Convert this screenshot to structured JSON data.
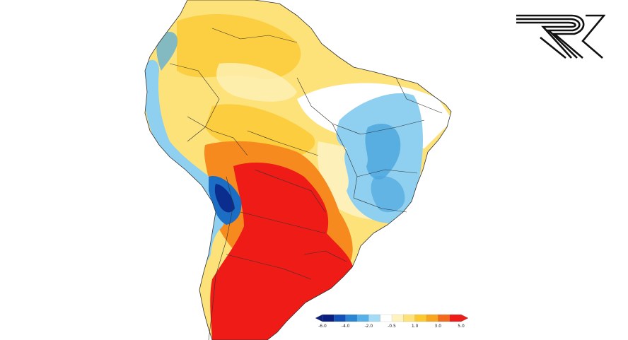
{
  "map": {
    "region": "South America",
    "variable": "temperature anomaly",
    "colors": {
      "background": "#ffffff",
      "ocean": "#ffffff",
      "deep_red": "#ee1b16",
      "orange": "#f68a1f",
      "gold": "#fbc830",
      "yellow": "#fde27a",
      "pale_yellow": "#fdf1b9",
      "white": "#ffffff",
      "light_blue": "#8fd0f0",
      "mid_blue": "#4fa8de",
      "blue": "#1b6ec4",
      "dark_blue": "#0b2d8e",
      "border": "#333333"
    }
  },
  "colorbar": {
    "ticks": [
      "-6.0",
      "-4.0",
      "-2.0",
      "-0.5",
      "1.0",
      "3.0",
      "5.0"
    ],
    "bins": [
      "#0b1f80",
      "#1350b8",
      "#2a86d3",
      "#58b0e8",
      "#a5dbf5",
      "#ffffff",
      "#fef3c0",
      "#fde27a",
      "#fbc830",
      "#f8a51f",
      "#f26a1b",
      "#ee1b16"
    ]
  },
  "logo": {
    "icon": "stylized-r-logo-icon"
  }
}
